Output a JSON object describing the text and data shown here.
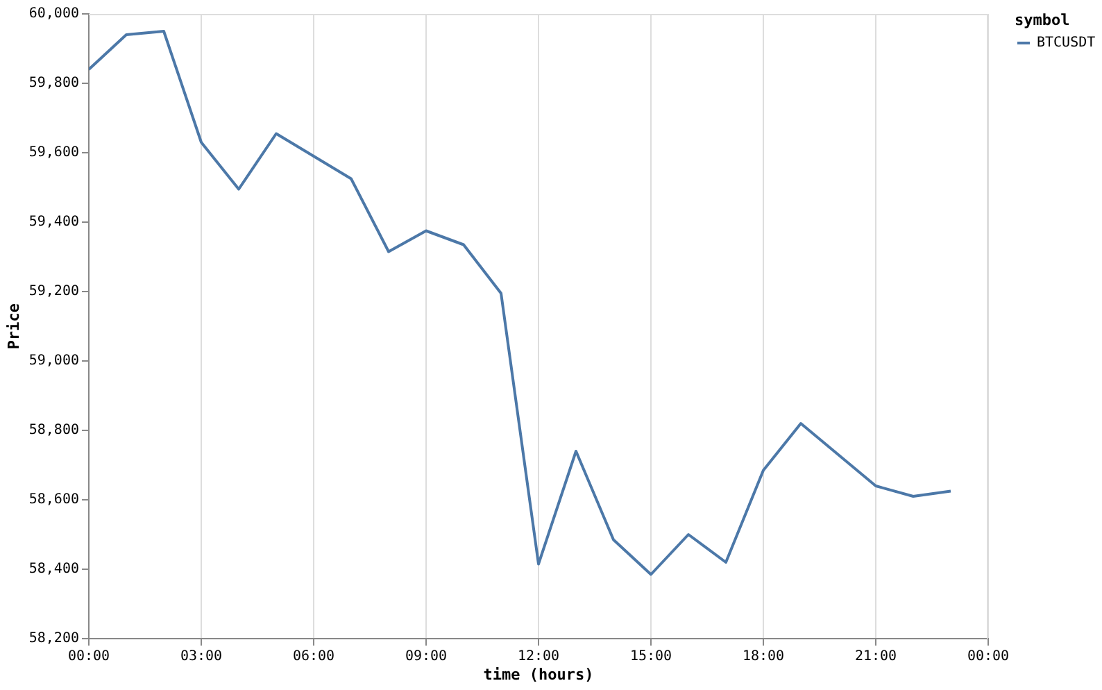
{
  "chart_data": {
    "type": "line",
    "xlabel": "time (hours)",
    "ylabel": "Price",
    "legend_title": "symbol",
    "x": [
      0,
      1,
      2,
      3,
      4,
      5,
      6,
      7,
      8,
      9,
      10,
      11,
      12,
      13,
      14,
      15,
      16,
      17,
      18,
      19,
      20,
      21,
      22,
      23
    ],
    "series": [
      {
        "name": "BTCUSDT",
        "color": "#4c78a8",
        "values": [
          59840,
          59940,
          59950,
          59630,
          59495,
          59655,
          59590,
          59525,
          59315,
          59375,
          59335,
          59195,
          58415,
          58740,
          58485,
          58385,
          58500,
          58420,
          58685,
          58820,
          58730,
          58640,
          58610,
          58625
        ]
      }
    ],
    "xlim": [
      0,
      24
    ],
    "xticks": [
      {
        "value": 0,
        "label": "00:00"
      },
      {
        "value": 3,
        "label": "03:00"
      },
      {
        "value": 6,
        "label": "06:00"
      },
      {
        "value": 9,
        "label": "09:00"
      },
      {
        "value": 12,
        "label": "12:00"
      },
      {
        "value": 15,
        "label": "15:00"
      },
      {
        "value": 18,
        "label": "18:00"
      },
      {
        "value": 21,
        "label": "21:00"
      },
      {
        "value": 24,
        "label": "00:00"
      }
    ],
    "ylim": [
      58200,
      60000
    ],
    "yticks": [
      {
        "value": 58200,
        "label": "58,200"
      },
      {
        "value": 58400,
        "label": "58,400"
      },
      {
        "value": 58600,
        "label": "58,600"
      },
      {
        "value": 58800,
        "label": "58,800"
      },
      {
        "value": 59000,
        "label": "59,000"
      },
      {
        "value": 59200,
        "label": "59,200"
      },
      {
        "value": 59400,
        "label": "59,400"
      },
      {
        "value": 59600,
        "label": "59,600"
      },
      {
        "value": 59800,
        "label": "59,800"
      },
      {
        "value": 60000,
        "label": "60,000"
      }
    ],
    "grid": "x",
    "legend": "top right",
    "marker": "none"
  }
}
